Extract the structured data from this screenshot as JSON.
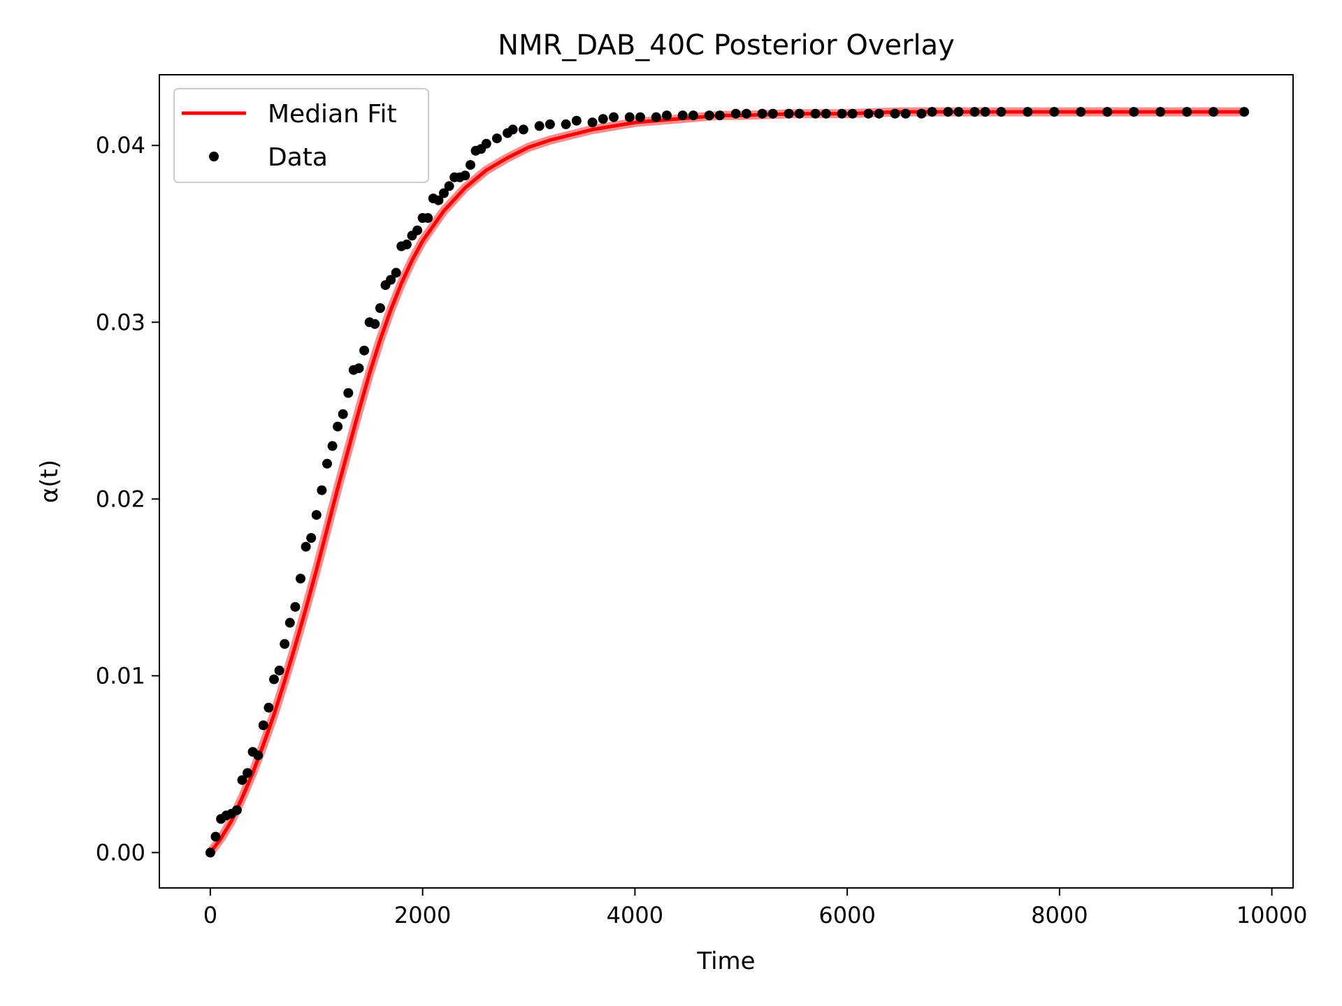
{
  "chart_data": {
    "type": "line",
    "title": "NMR_DAB_40C Posterior Overlay",
    "xlabel": "Time",
    "ylabel": "α(t)",
    "xlim": [
      -480,
      10200
    ],
    "ylim": [
      -0.002,
      0.044
    ],
    "xticks": [
      0,
      2000,
      4000,
      6000,
      8000,
      10000
    ],
    "xtick_labels": [
      "0",
      "2000",
      "4000",
      "6000",
      "8000",
      "10000"
    ],
    "yticks": [
      0.0,
      0.01,
      0.02,
      0.03,
      0.04
    ],
    "ytick_labels": [
      "0.00",
      "0.01",
      "0.02",
      "0.03",
      "0.04"
    ],
    "grid": false,
    "legend": {
      "position": "top-left",
      "entries": [
        "Median Fit",
        "Data"
      ]
    },
    "colors": {
      "fit": "#ff0000",
      "band": "#ff0000",
      "data": "#000000"
    },
    "series": [
      {
        "name": "Median Fit",
        "kind": "line",
        "x": [
          0,
          100,
          200,
          300,
          400,
          500,
          600,
          700,
          800,
          900,
          1000,
          1100,
          1200,
          1300,
          1400,
          1500,
          1600,
          1700,
          1800,
          1900,
          2000,
          2200,
          2400,
          2600,
          2800,
          3000,
          3200,
          3400,
          3600,
          3800,
          4000,
          4200,
          4400,
          4600,
          4800,
          5000,
          5500,
          6000,
          6500,
          7000,
          7500,
          8000,
          8500,
          9000,
          9500,
          9740
        ],
        "y": [
          0.0,
          0.0008,
          0.0018,
          0.0031,
          0.0045,
          0.0061,
          0.0078,
          0.0097,
          0.0117,
          0.0138,
          0.016,
          0.0183,
          0.0206,
          0.0228,
          0.025,
          0.0271,
          0.029,
          0.0307,
          0.0322,
          0.0335,
          0.0346,
          0.0363,
          0.0376,
          0.0386,
          0.0393,
          0.0399,
          0.0403,
          0.0406,
          0.0409,
          0.0411,
          0.0413,
          0.0414,
          0.0415,
          0.0416,
          0.0417,
          0.0417,
          0.0418,
          0.0418,
          0.0419,
          0.0419,
          0.0419,
          0.0419,
          0.0419,
          0.0419,
          0.0419,
          0.0419
        ]
      },
      {
        "name": "Data",
        "kind": "scatter",
        "x": [
          0,
          50,
          100,
          150,
          200,
          250,
          300,
          350,
          400,
          450,
          500,
          550,
          600,
          650,
          700,
          750,
          800,
          850,
          900,
          950,
          1000,
          1050,
          1100,
          1150,
          1200,
          1250,
          1300,
          1350,
          1400,
          1450,
          1500,
          1550,
          1600,
          1650,
          1700,
          1750,
          1800,
          1850,
          1900,
          1950,
          2000,
          2050,
          2100,
          2150,
          2200,
          2250,
          2300,
          2350,
          2400,
          2450,
          2500,
          2550,
          2600,
          2700,
          2800,
          2850,
          2950,
          3100,
          3200,
          3350,
          3450,
          3600,
          3700,
          3800,
          3950,
          4050,
          4200,
          4300,
          4450,
          4550,
          4700,
          4800,
          4950,
          5050,
          5200,
          5300,
          5450,
          5550,
          5700,
          5800,
          5950,
          6050,
          6200,
          6300,
          6450,
          6550,
          6700,
          6800,
          6950,
          7050,
          7200,
          7300,
          7450,
          7700,
          7950,
          8200,
          8450,
          8700,
          8950,
          9200,
          9450,
          9740
        ],
        "y": [
          0.0,
          0.0009,
          0.0019,
          0.0021,
          0.0022,
          0.0024,
          0.0041,
          0.0045,
          0.0057,
          0.0055,
          0.0072,
          0.0082,
          0.0098,
          0.0103,
          0.0118,
          0.013,
          0.0139,
          0.0155,
          0.0173,
          0.0178,
          0.0191,
          0.0205,
          0.022,
          0.023,
          0.0241,
          0.0248,
          0.026,
          0.0273,
          0.0274,
          0.0284,
          0.03,
          0.0299,
          0.0308,
          0.0321,
          0.0324,
          0.0328,
          0.0343,
          0.0344,
          0.0349,
          0.0352,
          0.0359,
          0.0359,
          0.037,
          0.0369,
          0.0373,
          0.0377,
          0.0382,
          0.0382,
          0.0383,
          0.0389,
          0.0397,
          0.0398,
          0.0401,
          0.0404,
          0.0407,
          0.0409,
          0.0409,
          0.0411,
          0.0412,
          0.0412,
          0.0414,
          0.0413,
          0.0415,
          0.0416,
          0.0416,
          0.0416,
          0.0416,
          0.0417,
          0.0417,
          0.0417,
          0.0417,
          0.0417,
          0.0418,
          0.0418,
          0.0418,
          0.0418,
          0.0418,
          0.0418,
          0.0418,
          0.0418,
          0.0418,
          0.0418,
          0.0418,
          0.0418,
          0.0418,
          0.0418,
          0.0418,
          0.0419,
          0.0419,
          0.0419,
          0.0419,
          0.0419,
          0.0419,
          0.0419,
          0.0419,
          0.0419,
          0.0419,
          0.0419,
          0.0419,
          0.0419,
          0.0419,
          0.0419
        ]
      }
    ]
  }
}
